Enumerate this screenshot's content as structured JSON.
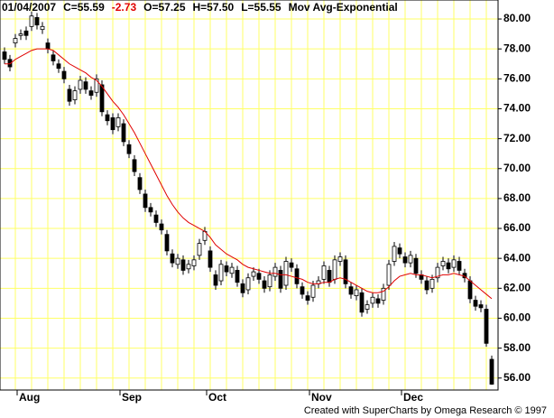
{
  "chart_data": {
    "type": "candlestick",
    "title": "01/04/2007",
    "annotations": [
      "C=55.59",
      "-2.73",
      "O=57.25",
      "H=57.50",
      "L=55.55"
    ],
    "footer": "Created with SuperCharts by Omega Research © 1997",
    "categories": [
      null,
      null,
      null,
      null,
      "Aug",
      null,
      null,
      null,
      null,
      null,
      null,
      null,
      null,
      null,
      null,
      null,
      null,
      null,
      null,
      null,
      null,
      null,
      null,
      "Sep",
      null,
      null,
      null,
      null,
      null,
      null,
      null,
      null,
      null,
      null,
      null,
      null,
      null,
      null,
      null,
      "Oct",
      null,
      null,
      null,
      null,
      null,
      null,
      null,
      null,
      null,
      null,
      null,
      null,
      null,
      null,
      null,
      null,
      null,
      null,
      "Nov",
      null,
      null,
      null,
      null,
      null,
      null,
      null,
      null,
      null,
      null,
      null,
      null,
      null,
      null,
      null,
      null,
      "Dec",
      null,
      null,
      null,
      null,
      null,
      null,
      null,
      null,
      null,
      null,
      null,
      null,
      null,
      null,
      null
    ],
    "open": [
      77.8,
      77.3,
      78.4,
      78.9,
      79.2,
      79.5,
      80.1,
      79.3,
      78.4,
      77.6,
      77.0,
      76.5,
      75.3,
      74.6,
      75.3,
      75.8,
      75.2,
      75.1,
      75.6,
      73.6,
      73.4,
      72.8,
      73.0,
      71.6,
      70.6,
      69.4,
      68.3,
      67.4,
      66.9,
      66.3,
      65.6,
      64.3,
      63.6,
      63.9,
      63.3,
      63.5,
      64.2,
      65.2,
      64.5,
      62.9,
      62.5,
      63.5,
      63.0,
      63.2,
      62.3,
      61.9,
      62.8,
      63.0,
      62.5,
      62.1,
      62.8,
      63.2,
      62.2,
      63.7,
      63.3,
      62.1,
      61.5,
      61.4,
      62.3,
      62.6,
      63.2,
      62.6,
      63.8,
      63.9,
      62.1,
      61.5,
      61.7,
      60.6,
      61.0,
      61.3,
      61.2,
      62.2,
      63.8,
      64.7,
      64.1,
      63.7,
      64.0,
      62.9,
      62.5,
      62.0,
      62.7,
      63.5,
      63.7,
      63.4,
      63.8,
      63.0,
      62.5,
      61.2,
      60.9,
      60.6,
      57.25
    ],
    "high": [
      78.1,
      77.6,
      79.0,
      79.3,
      79.5,
      80.5,
      80.4,
      79.8,
      78.7,
      77.9,
      77.3,
      76.8,
      75.6,
      75.5,
      76.2,
      76.1,
      75.5,
      76.3,
      75.9,
      73.9,
      73.7,
      73.7,
      73.3,
      71.9,
      70.9,
      69.7,
      68.6,
      67.7,
      67.2,
      66.6,
      65.9,
      64.6,
      64.3,
      64.2,
      63.9,
      64.2,
      65.3,
      66.1,
      64.8,
      63.2,
      63.9,
      63.8,
      63.7,
      63.5,
      62.6,
      63.0,
      63.4,
      63.3,
      62.8,
      63.2,
      63.7,
      63.5,
      64.1,
      64.0,
      63.6,
      62.4,
      61.8,
      62.5,
      62.8,
      63.8,
      63.5,
      64.2,
      64.4,
      64.2,
      62.4,
      62.2,
      62.0,
      61.2,
      61.7,
      61.6,
      62.3,
      63.9,
      65.1,
      65.0,
      64.4,
      64.5,
      64.3,
      63.2,
      62.8,
      62.9,
      63.7,
      64.1,
      64.0,
      64.2,
      64.1,
      63.3,
      62.8,
      61.5,
      61.2,
      60.9,
      57.5
    ],
    "low": [
      77.0,
      76.5,
      78.1,
      78.6,
      78.6,
      79.2,
      79.3,
      79.0,
      77.7,
      76.9,
      76.4,
      75.7,
      74.2,
      74.3,
      75.0,
      75.0,
      74.6,
      74.8,
      73.5,
      72.9,
      72.3,
      72.5,
      71.5,
      70.7,
      69.5,
      68.3,
      67.1,
      66.8,
      66.1,
      65.6,
      64.2,
      63.4,
      63.3,
      62.9,
      63.0,
      63.2,
      63.9,
      64.9,
      63.1,
      61.9,
      62.2,
      62.8,
      62.7,
      62.1,
      61.4,
      61.6,
      62.5,
      62.3,
      61.7,
      61.8,
      62.5,
      61.7,
      61.9,
      63.1,
      62.0,
      61.3,
      60.9,
      61.1,
      62.0,
      62.3,
      62.1,
      62.3,
      63.5,
      62.0,
      61.3,
      61.2,
      60.1,
      60.3,
      60.7,
      60.7,
      60.9,
      61.9,
      63.5,
      64.0,
      63.4,
      63.4,
      62.7,
      62.3,
      61.6,
      61.7,
      62.4,
      63.2,
      63.0,
      63.1,
      62.9,
      62.4,
      61.0,
      60.5,
      60.4,
      58.1,
      55.55
    ],
    "close": [
      77.3,
      76.8,
      78.7,
      79.0,
      78.9,
      80.2,
      79.6,
      79.5,
      78.0,
      77.2,
      76.7,
      76.0,
      74.5,
      75.2,
      75.9,
      75.3,
      74.9,
      76.0,
      73.8,
      73.2,
      72.6,
      73.4,
      71.8,
      71.0,
      69.8,
      68.6,
      67.4,
      67.1,
      66.4,
      65.9,
      64.5,
      63.7,
      64.0,
      63.2,
      63.6,
      63.9,
      65.0,
      65.8,
      63.4,
      62.2,
      63.6,
      63.1,
      63.4,
      62.4,
      61.7,
      62.7,
      63.1,
      62.6,
      62.0,
      62.9,
      63.4,
      62.0,
      63.8,
      63.4,
      62.3,
      61.6,
      61.2,
      62.2,
      62.5,
      63.5,
      62.4,
      63.9,
      64.1,
      62.3,
      61.6,
      61.9,
      60.4,
      60.9,
      61.4,
      61.0,
      62.0,
      63.6,
      64.8,
      64.3,
      63.7,
      64.2,
      63.0,
      62.6,
      61.9,
      62.6,
      63.4,
      63.8,
      63.3,
      63.9,
      63.2,
      62.7,
      61.3,
      60.8,
      60.7,
      58.32,
      55.59
    ],
    "series": [
      {
        "name": "Mov Avg-Exponential",
        "color": "#e00000",
        "values": [
          77.0,
          77.0,
          77.3,
          77.5,
          77.7,
          77.9,
          78.0,
          78.0,
          78.0,
          77.9,
          77.6,
          77.3,
          77.0,
          76.8,
          76.6,
          76.4,
          76.1,
          75.9,
          75.5,
          75.0,
          74.5,
          74.1,
          73.6,
          73.0,
          72.4,
          71.7,
          71.0,
          70.3,
          69.6,
          68.9,
          68.2,
          67.6,
          67.1,
          66.7,
          66.4,
          66.2,
          66.0,
          65.8,
          65.4,
          64.9,
          64.6,
          64.3,
          64.1,
          63.9,
          63.6,
          63.4,
          63.3,
          63.2,
          63.1,
          63.0,
          63.0,
          62.9,
          62.9,
          62.8,
          62.7,
          62.6,
          62.4,
          62.3,
          62.3,
          62.4,
          62.4,
          62.6,
          62.7,
          62.6,
          62.4,
          62.2,
          62.0,
          61.8,
          61.7,
          61.7,
          61.8,
          62.1,
          62.5,
          62.8,
          62.9,
          63.0,
          62.9,
          62.9,
          62.8,
          62.7,
          62.8,
          62.9,
          62.9,
          63.0,
          62.9,
          62.8,
          62.5,
          62.2,
          61.9,
          61.6,
          61.3
        ]
      }
    ],
    "ylim": [
      55.2,
      81.27
    ],
    "yticks": [
      {
        "value": 56,
        "label": "56.00"
      },
      {
        "value": 58,
        "label": "58.00"
      },
      {
        "value": 60,
        "label": "60.00"
      },
      {
        "value": 62,
        "label": "62.00"
      },
      {
        "value": 64,
        "label": "64.00"
      },
      {
        "value": 66,
        "label": "66.00"
      },
      {
        "value": 68,
        "label": "68.00"
      },
      {
        "value": 70,
        "label": "70.00"
      },
      {
        "value": 72,
        "label": "72.00"
      },
      {
        "value": 74,
        "label": "74.00"
      },
      {
        "value": 76,
        "label": "76.00"
      },
      {
        "value": 78,
        "label": "78.00"
      },
      {
        "value": 80,
        "label": "80.00"
      }
    ],
    "grid": true,
    "grid_color": "#ffff66",
    "up_color": "#ffffff",
    "down_color": "#000000"
  }
}
